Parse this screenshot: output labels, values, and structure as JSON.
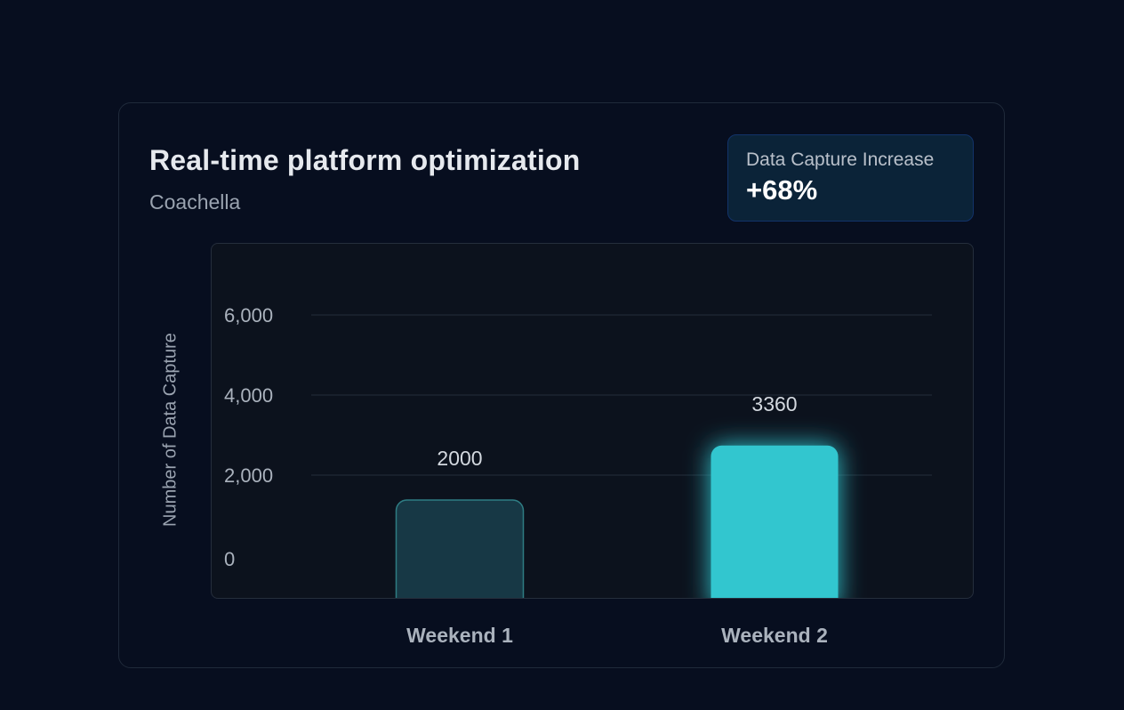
{
  "card": {
    "title": "Real-time platform optimization",
    "subtitle": "Coachella"
  },
  "kpi": {
    "label": "Data Capture Increase",
    "value": "+68%"
  },
  "colors": {
    "background": "#070e1f",
    "accent": "#33c6cf",
    "muted_bar": "#173845",
    "muted_bar_border": "#2f7d84"
  },
  "chart_data": {
    "type": "bar",
    "categories": [
      "Weekend 1",
      "Weekend 2"
    ],
    "values": [
      2000,
      3360
    ],
    "data_labels": [
      "2000",
      "3360"
    ],
    "ylabel": "Number  of Data Capture",
    "yticks": [
      0,
      2000,
      4000,
      6000
    ],
    "ytick_labels": [
      "0",
      "2,000",
      "4,000",
      "6,000"
    ],
    "ylim": [
      0,
      6000
    ],
    "grid": true,
    "highlight_index": 1
  }
}
